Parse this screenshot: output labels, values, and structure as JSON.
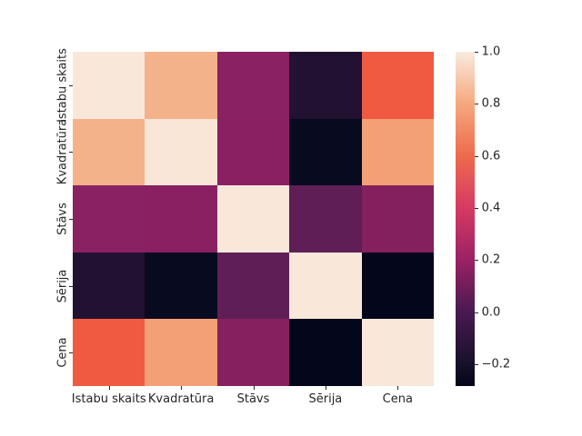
{
  "figure": {
    "background": "#ffffff"
  },
  "chart_data": {
    "type": "heatmap",
    "title": "",
    "xlabel": "",
    "ylabel": "",
    "categories": [
      "Istabu skaits",
      "Kvadratūra",
      "Stāvs",
      "Sērija",
      "Cena"
    ],
    "matrix": [
      [
        1.0,
        0.83,
        0.16,
        -0.15,
        0.57
      ],
      [
        0.83,
        1.0,
        0.15,
        -0.26,
        0.78
      ],
      [
        0.16,
        0.15,
        1.0,
        0.06,
        0.14
      ],
      [
        -0.15,
        -0.26,
        0.06,
        1.0,
        -0.28
      ],
      [
        0.57,
        0.78,
        0.14,
        -0.28,
        1.0
      ]
    ],
    "cell_colors": [
      [
        "#f9e8da",
        "#f4b28b",
        "#8a2162",
        "#221130",
        "#ef5a41"
      ],
      [
        "#f4b28b",
        "#f9e6d7",
        "#8a2062",
        "#080a20",
        "#f4a076"
      ],
      [
        "#8a2162",
        "#8a2062",
        "#f9e7d9",
        "#5f1e55",
        "#85205e"
      ],
      [
        "#221130",
        "#080a20",
        "#5f1e55",
        "#f9e7d9",
        "#04061c"
      ],
      [
        "#ef5a41",
        "#f4a076",
        "#86205e",
        "#04061c",
        "#f9e7d9"
      ]
    ],
    "colormap": "rocket",
    "vmin": -0.284,
    "vmax": 1.0,
    "grid": false,
    "legend_position": "colorbar-right",
    "colorbar": {
      "tick_values": [
        1.0,
        0.8,
        0.6,
        0.4,
        0.2,
        0.0,
        -0.2
      ],
      "tick_labels": [
        "1.0",
        "0.8",
        "0.6",
        "0.4",
        "0.2",
        "0.0",
        "−0.2"
      ],
      "gradient": [
        {
          "pos": 0.0,
          "color": "#03051a"
        },
        {
          "pos": 0.065,
          "color": "#161029"
        },
        {
          "pos": 0.221,
          "color": "#481a50"
        },
        {
          "pos": 0.377,
          "color": "#9b2164"
        },
        {
          "pos": 0.533,
          "color": "#d63a63"
        },
        {
          "pos": 0.688,
          "color": "#ee6a4c"
        },
        {
          "pos": 0.844,
          "color": "#f5a87d"
        },
        {
          "pos": 1.0,
          "color": "#f9ebdf"
        }
      ]
    }
  }
}
